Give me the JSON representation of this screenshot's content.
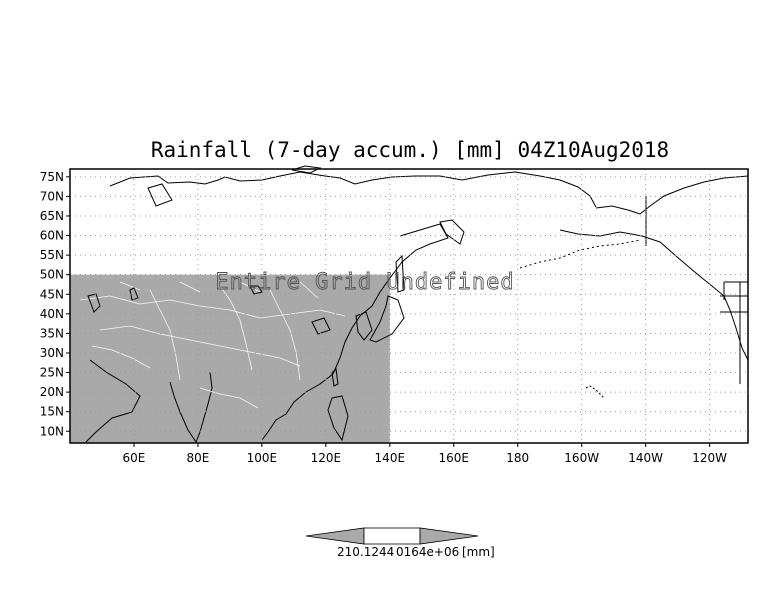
{
  "map": {
    "title": "Rainfall (7-day accum.) [mm] 04Z10Aug2018",
    "overlay_text": "Entire Grid Undefined",
    "lon_range_deg_east": [
      40,
      252
    ],
    "lat_range_deg": [
      7,
      77
    ],
    "lat_ticks": [
      {
        "value": 10,
        "label": "10N"
      },
      {
        "value": 15,
        "label": "15N"
      },
      {
        "value": 20,
        "label": "20N"
      },
      {
        "value": 25,
        "label": "25N"
      },
      {
        "value": 30,
        "label": "30N"
      },
      {
        "value": 35,
        "label": "35N"
      },
      {
        "value": 40,
        "label": "40N"
      },
      {
        "value": 45,
        "label": "45N"
      },
      {
        "value": 50,
        "label": "50N"
      },
      {
        "value": 55,
        "label": "55N"
      },
      {
        "value": 60,
        "label": "60N"
      },
      {
        "value": 65,
        "label": "65N"
      },
      {
        "value": 70,
        "label": "70N"
      },
      {
        "value": 75,
        "label": "75N"
      }
    ],
    "lon_ticks": [
      {
        "value": 60,
        "label": "60E"
      },
      {
        "value": 80,
        "label": "80E"
      },
      {
        "value": 100,
        "label": "100E"
      },
      {
        "value": 120,
        "label": "120E"
      },
      {
        "value": 140,
        "label": "140E"
      },
      {
        "value": 160,
        "label": "160E"
      },
      {
        "value": 180,
        "label": "180"
      },
      {
        "value": 200,
        "label": "160W"
      },
      {
        "value": 220,
        "label": "140W"
      },
      {
        "value": 240,
        "label": "120W"
      }
    ],
    "undefined_region": {
      "lon": [
        40,
        140
      ],
      "lat": [
        7,
        50
      ]
    },
    "colors": {
      "shade": "#a9a9a9",
      "frame": "#000000",
      "grid": "#9a9a9a",
      "coast": "#000000",
      "borders_over_shade": "#ffffff"
    }
  },
  "colorbar": {
    "labels_text": "210.1244",
    "overlap_text": "0164e+06",
    "unit": "[mm]",
    "colors": {
      "left": "#a9a9a9",
      "middle": "#ffffff",
      "right": "#a9a9a9"
    }
  }
}
